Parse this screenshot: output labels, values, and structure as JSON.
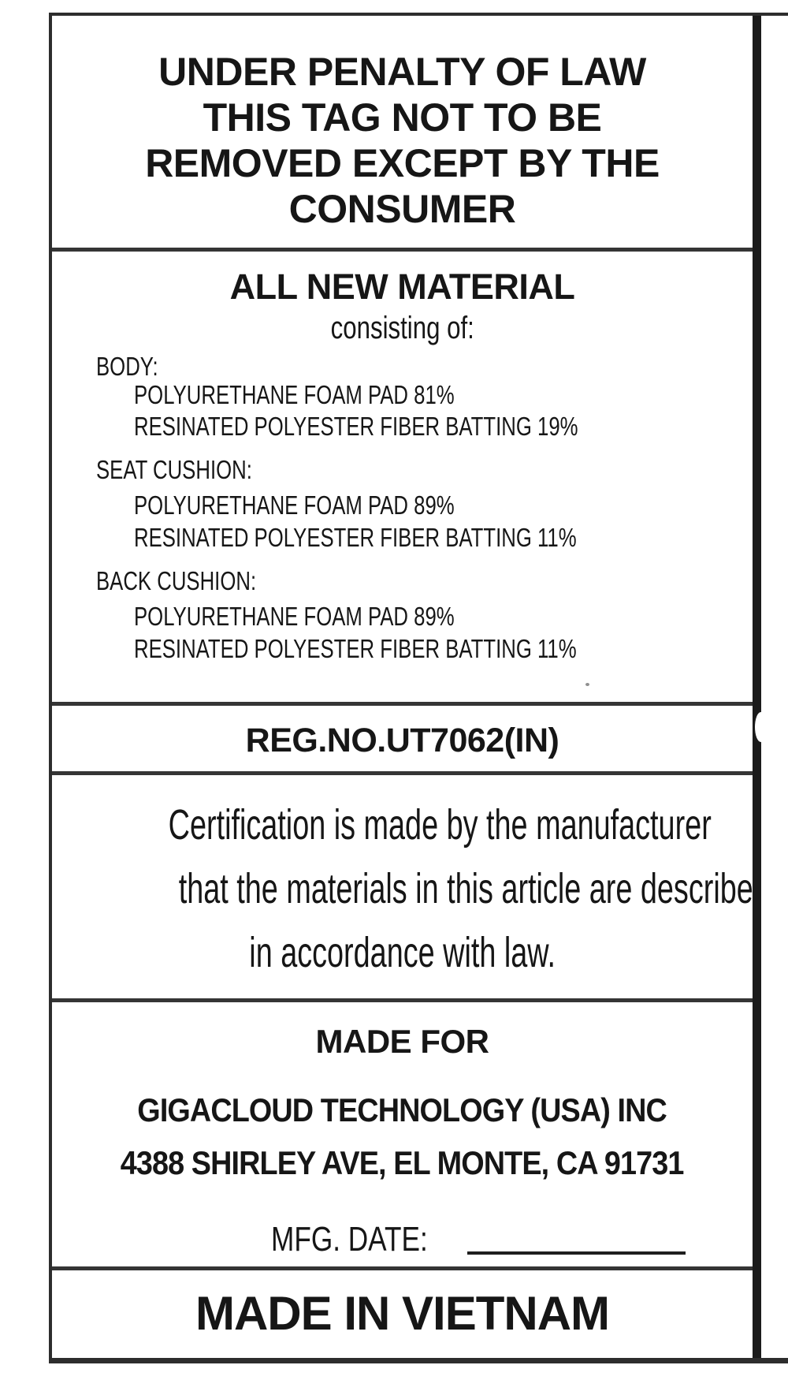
{
  "label": {
    "penalty_notice": {
      "lines": [
        "UNDER PENALTY OF LAW",
        "THIS TAG NOT TO BE",
        "REMOVED EXCEPT BY THE",
        "CONSUMER"
      ]
    },
    "materials": {
      "heading": "ALL NEW MATERIAL",
      "subheading": "consisting of:",
      "groups": [
        {
          "name": "BODY:",
          "components": [
            "POLYURETHANE FOAM PAD 81%",
            "RESINATED POLYESTER FIBER BATTING 19%"
          ]
        },
        {
          "name": "SEAT CUSHION:",
          "components": [
            "POLYURETHANE FOAM PAD 89%",
            "RESINATED POLYESTER FIBER BATTING 11%"
          ]
        },
        {
          "name": "BACK CUSHION:",
          "components": [
            "POLYURETHANE FOAM PAD 89%",
            "RESINATED POLYESTER FIBER BATTING 11%"
          ]
        }
      ]
    },
    "registration": {
      "reg_no": "REG.NO.UT7062(IN)"
    },
    "certification": {
      "lines": [
        "Certification is made by the manufacturer",
        "that the materials in this article are described",
        "in accordance with law."
      ]
    },
    "made_for": {
      "heading": "MADE FOR",
      "company": "GIGACLOUD TECHNOLOGY (USA) INC",
      "address": "4388 SHIRLEY AVE, EL MONTE, CA 91731",
      "mfg_date_label": "MFG. DATE:",
      "mfg_date_value": ""
    },
    "origin": {
      "text": "MADE IN VIETNAM"
    }
  },
  "colors": {
    "ink": "#161616",
    "border": "#2d2d2d",
    "right_bar": "#1b1b1b",
    "background": "#ffffff"
  }
}
